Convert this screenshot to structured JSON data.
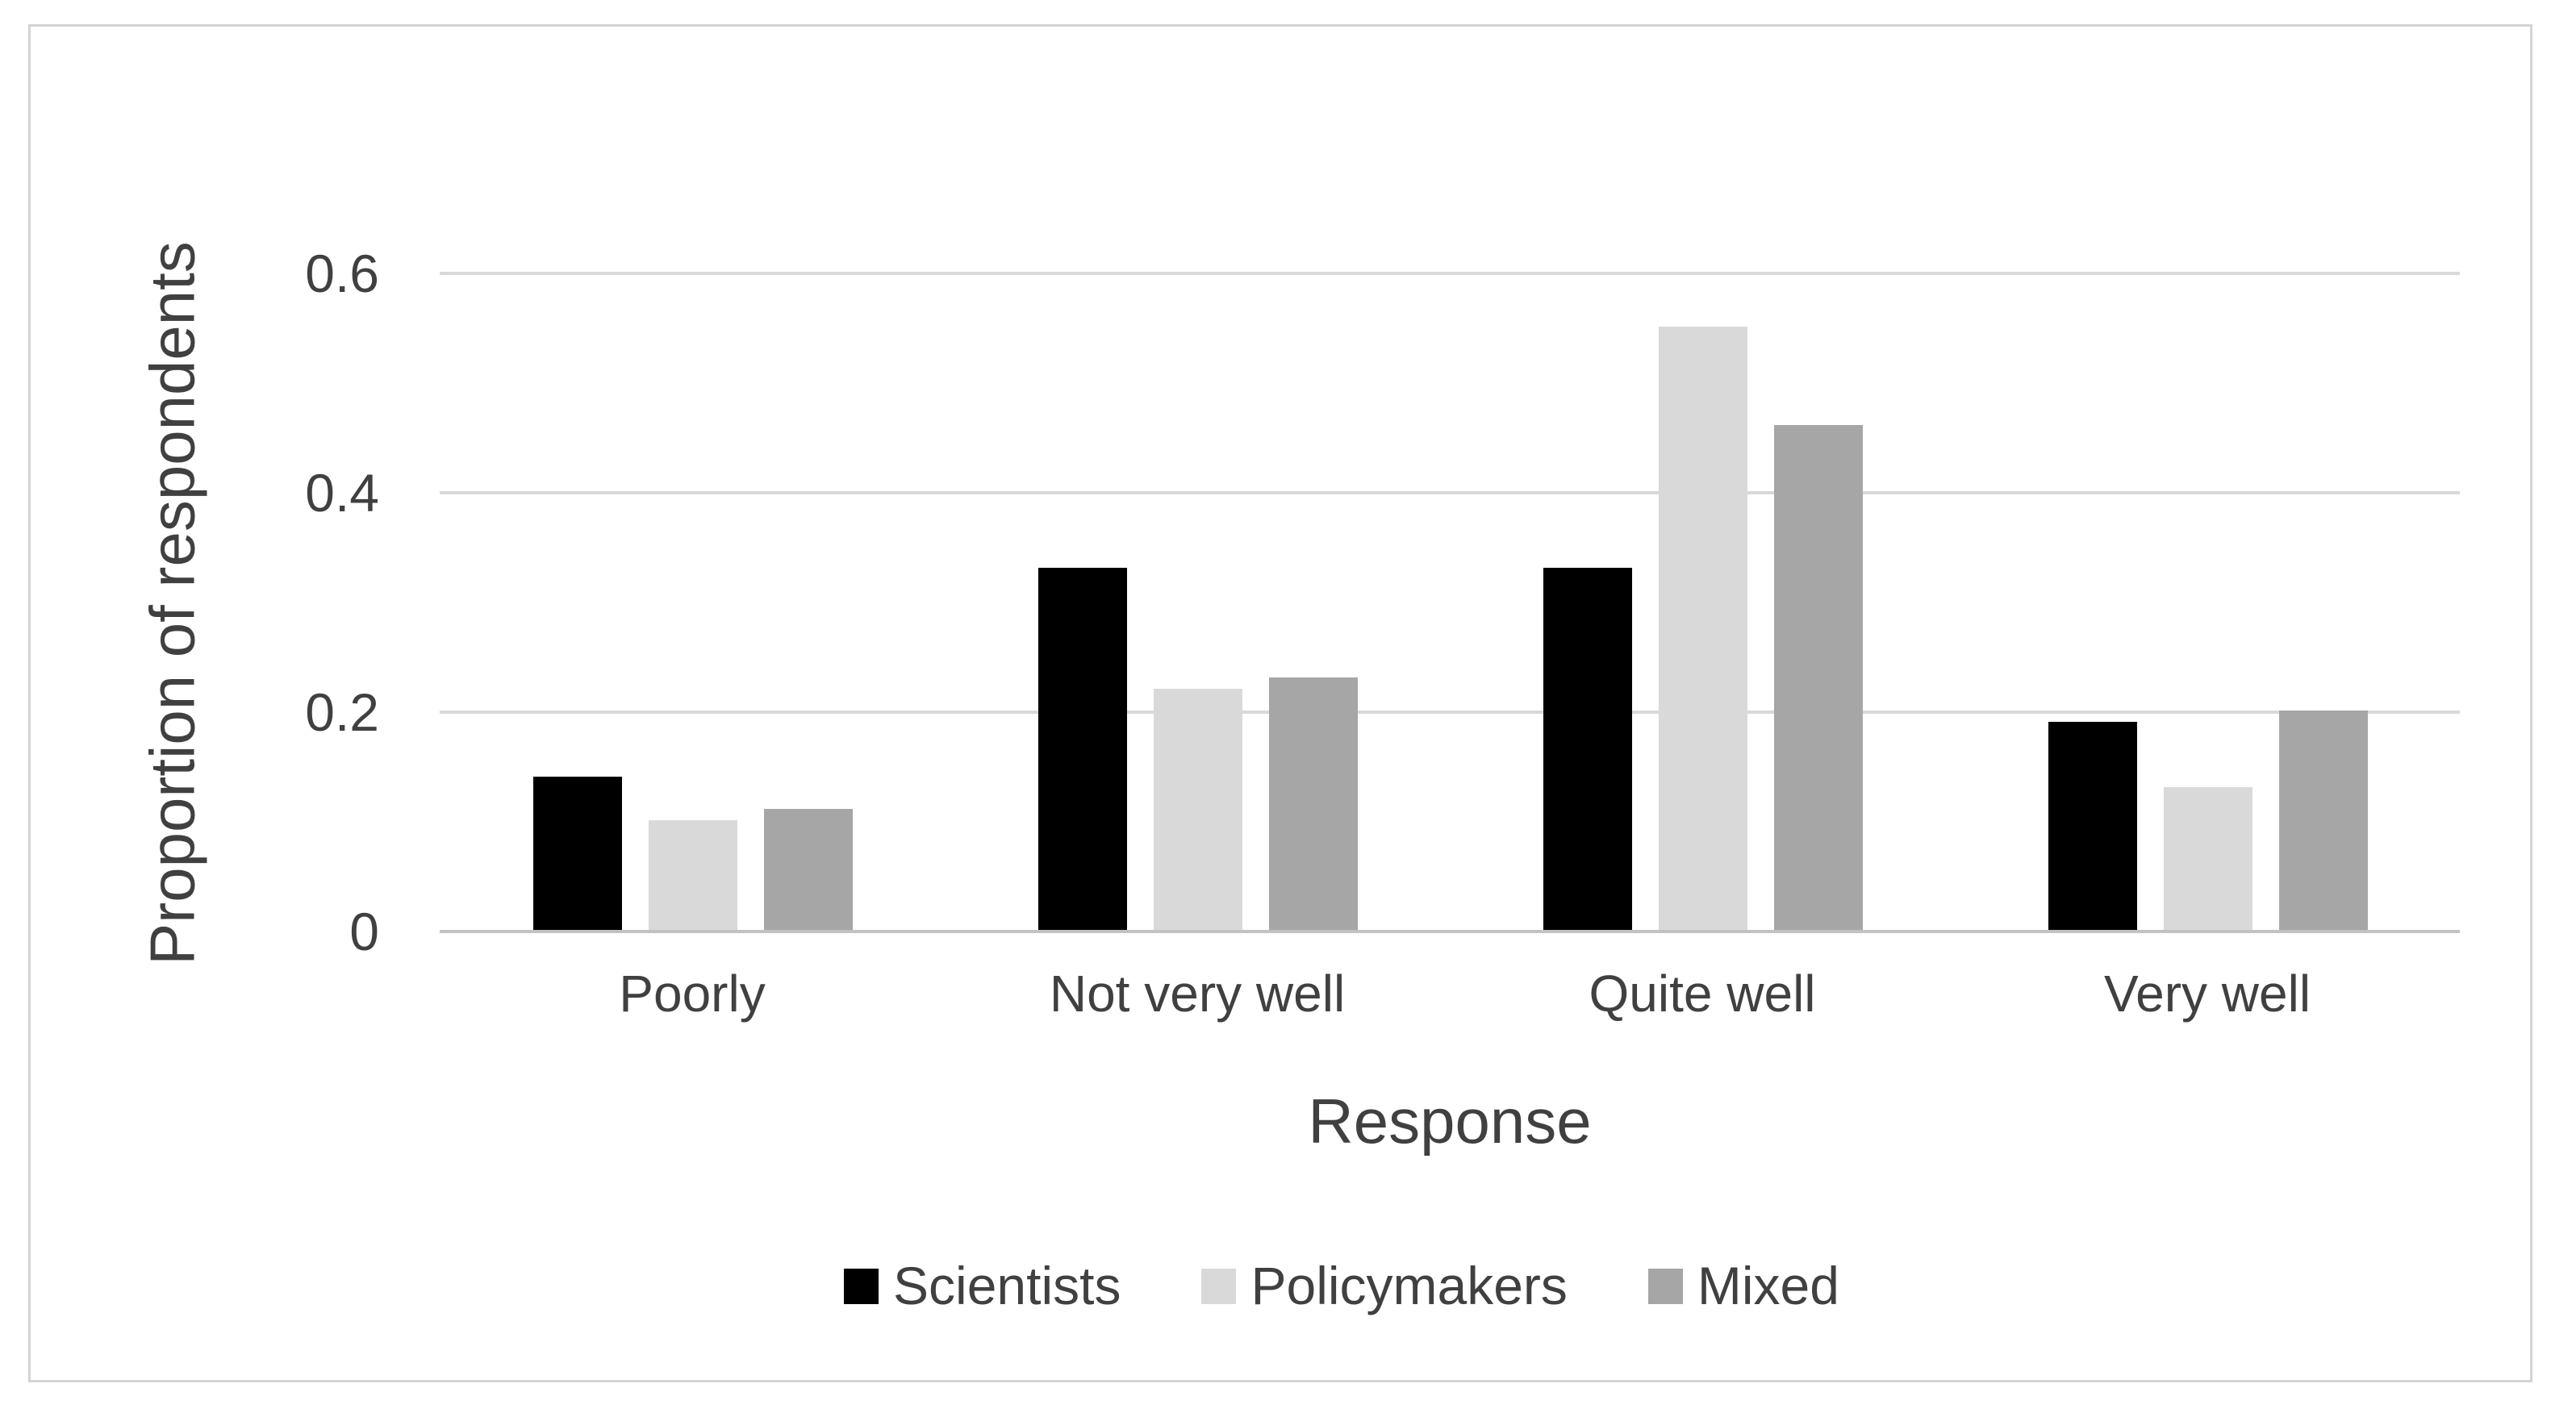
{
  "chart_data": {
    "type": "bar",
    "title": "",
    "categories": [
      "Poorly",
      "Not very well",
      "Quite well",
      "Very well"
    ],
    "series": [
      {
        "name": "Scientists",
        "color": "#000000",
        "values": [
          0.14,
          0.33,
          0.33,
          0.19
        ]
      },
      {
        "name": "Policymakers",
        "color": "#d9d9d9",
        "values": [
          0.1,
          0.22,
          0.55,
          0.13
        ]
      },
      {
        "name": "Mixed",
        "color": "#a6a6a6",
        "values": [
          0.11,
          0.23,
          0.46,
          0.2
        ]
      }
    ],
    "xlabel": "Response",
    "ylabel": "Proportion of respondents",
    "ylim": [
      0,
      0.6
    ],
    "yticks": [
      0,
      0.2,
      0.4,
      0.6
    ],
    "ytick_labels": [
      "0",
      "0.2",
      "0.4",
      "0.6"
    ],
    "grid": true,
    "legend_position": "bottom"
  },
  "figure": {
    "background_color": "#ffffff",
    "border_color": "#d4d4d4",
    "gridline_color": "#d9d9d9",
    "axis_line_color": "#c2c2c2",
    "text_color": "#404040"
  }
}
